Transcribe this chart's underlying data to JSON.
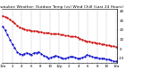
{
  "title": "Milwaukee Weather: Outdoor Temp (vs) Wind Chill (Last 24 Hours)",
  "temp_color": "#cc0000",
  "windchill_color": "#0000cc",
  "background_color": "#ffffff",
  "grid_color": "#888888",
  "text_color": "#000000",
  "ylim": [
    -15,
    42
  ],
  "yticks": [
    40,
    30,
    20,
    10,
    0,
    -10
  ],
  "ytick_labels": [
    "40",
    "30",
    "20",
    "10",
    "0",
    "-10"
  ],
  "temp_values": [
    35,
    34,
    33,
    31,
    29,
    27,
    25,
    23,
    22,
    21,
    20,
    20,
    19,
    19,
    19,
    18,
    18,
    17,
    17,
    17,
    16,
    16,
    16,
    16,
    15,
    15,
    14,
    14,
    13,
    13,
    13,
    12,
    11,
    10,
    9,
    8,
    8,
    7,
    7,
    6,
    6,
    5,
    5,
    4,
    4,
    3,
    3,
    2
  ],
  "windchill_values": [
    24,
    20,
    15,
    10,
    5,
    1,
    -3,
    -5,
    -6,
    -5,
    -4,
    -5,
    -6,
    -4,
    -4,
    -3,
    -5,
    -7,
    -8,
    -10,
    -9,
    -8,
    -7,
    -8,
    -9,
    -10,
    -10,
    -9,
    -8,
    -8,
    -9,
    -10,
    -10,
    -9,
    -8,
    -6,
    -7,
    -8,
    -9,
    -9,
    -10,
    -10,
    -10,
    -11,
    -11,
    -12,
    -13,
    -13
  ],
  "n_vgrid": 13,
  "marker_size": 1.2,
  "line_width": 0.5,
  "title_fontsize": 3.2,
  "tick_fontsize": 2.8,
  "xtick_labels": [
    "12a",
    "",
    "2",
    "",
    "4",
    "",
    "6",
    "",
    "8",
    "",
    "10",
    "",
    "12p",
    "",
    "2",
    "",
    "4",
    "",
    "6",
    "",
    "8",
    "",
    "10",
    "",
    "12a"
  ]
}
